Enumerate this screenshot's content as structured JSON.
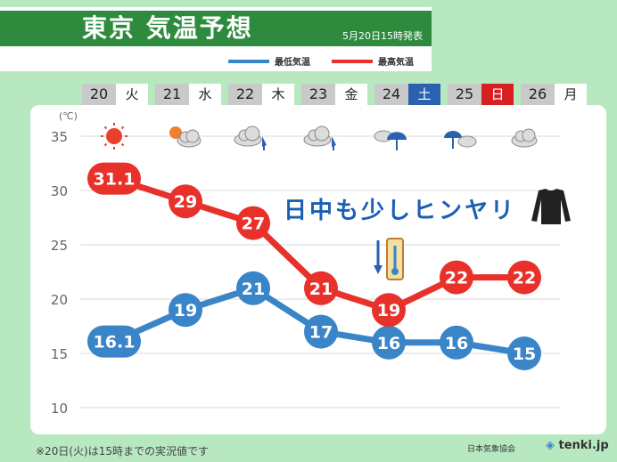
{
  "header": {
    "title": "東京 気温予想",
    "issued": "5月20日15時発表"
  },
  "legend": {
    "low_label": "最低気温",
    "high_label": "最高気温"
  },
  "days": [
    {
      "date": "20",
      "weekday": "火"
    },
    {
      "date": "21",
      "weekday": "水"
    },
    {
      "date": "22",
      "weekday": "木"
    },
    {
      "date": "23",
      "weekday": "金"
    },
    {
      "date": "24",
      "weekday": "土"
    },
    {
      "date": "25",
      "weekday": "日"
    },
    {
      "date": "26",
      "weekday": "月"
    }
  ],
  "weather_icons": [
    "sun-icon",
    "sun-cloud-icon",
    "cloud-rain-icon",
    "cloud-rain-icon",
    "cloud-rain-icon",
    "rain-cloud-icon",
    "cloud-icon"
  ],
  "banner": "日中も少しヒンヤリ",
  "footnote": "※20日(火)は15時までの実況値です",
  "credit": {
    "org": "日本気象協会",
    "logo": "tenki.jp"
  },
  "colors": {
    "high": "#e8312b",
    "low": "#3a84c8",
    "saturday": "#2a62b0",
    "sunday": "#d82020",
    "title_bg": "#2e8b3e"
  },
  "chart_data": {
    "type": "line",
    "categories": [
      "20",
      "21",
      "22",
      "23",
      "24",
      "25",
      "26"
    ],
    "series": [
      {
        "name": "最高気温",
        "values": [
          31.1,
          29,
          27,
          21,
          19,
          22,
          22
        ]
      },
      {
        "name": "最低気温",
        "values": [
          16.1,
          19,
          21,
          17,
          16,
          16,
          15
        ]
      }
    ],
    "value_labels": {
      "high": [
        "31.1",
        "29",
        "27",
        "21",
        "19",
        "22",
        "22"
      ],
      "low": [
        "16.1",
        "19",
        "21",
        "17",
        "16",
        "16",
        "15"
      ]
    },
    "yticks": [
      "35",
      "30",
      "25",
      "20",
      "15",
      "10"
    ],
    "ylim": [
      10,
      35
    ],
    "yunit": "(℃)",
    "grid": true,
    "legend": "top-right"
  }
}
